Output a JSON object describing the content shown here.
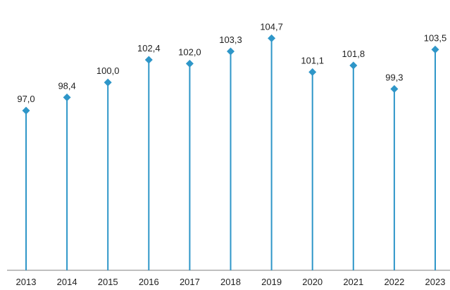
{
  "chart_data": {
    "type": "lollipop",
    "categories": [
      "2013",
      "2014",
      "2015",
      "2016",
      "2017",
      "2018",
      "2019",
      "2020",
      "2021",
      "2022",
      "2023"
    ],
    "values": [
      97.0,
      98.4,
      100.0,
      102.4,
      102.0,
      103.3,
      104.7,
      101.1,
      101.8,
      99.3,
      103.5
    ],
    "value_labels": [
      "97,0",
      "98,4",
      "100,0",
      "102,4",
      "102,0",
      "103,3",
      "104,7",
      "101,1",
      "101,8",
      "99,3",
      "103,5"
    ],
    "title": "",
    "xlabel": "",
    "ylabel": "",
    "ylim": [
      80,
      106
    ],
    "grid": false,
    "legend": "none",
    "colors": {
      "stem": "#2e96c8",
      "marker": "#2e96c8",
      "axis": "#7f7f7f",
      "text": "#1f1f1f"
    }
  }
}
